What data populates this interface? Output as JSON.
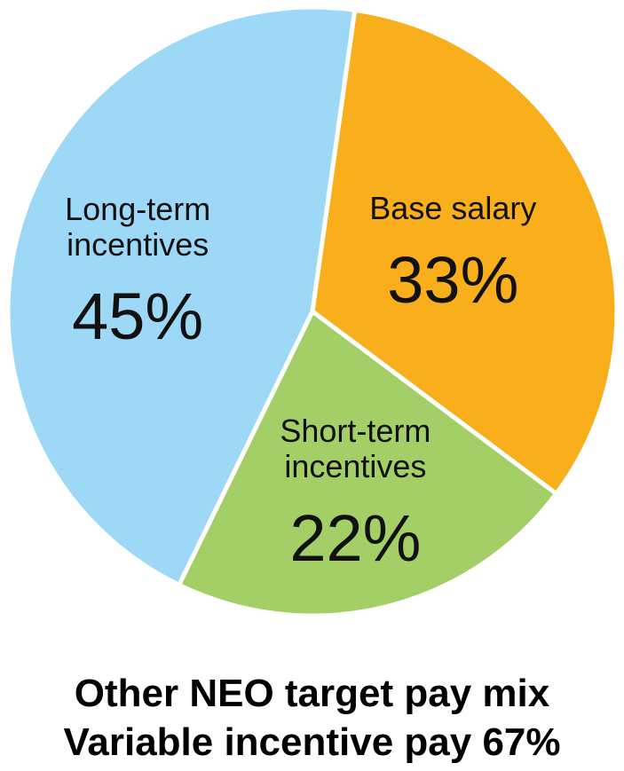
{
  "chart_data": {
    "type": "pie",
    "title": "Other NEO target pay mix",
    "subtitle": "Variable incentive pay 67%",
    "slices": [
      {
        "label_lines": [
          "Base salary"
        ],
        "value": 33,
        "value_label": "33%",
        "color": "#F9AE1B"
      },
      {
        "label_lines": [
          "Short-term",
          "incentives"
        ],
        "value": 22,
        "value_label": "22%",
        "color": "#A4CE66"
      },
      {
        "label_lines": [
          "Long-term",
          "incentives"
        ],
        "value": 45,
        "value_label": "45%",
        "color": "#9DD9F6"
      }
    ]
  }
}
